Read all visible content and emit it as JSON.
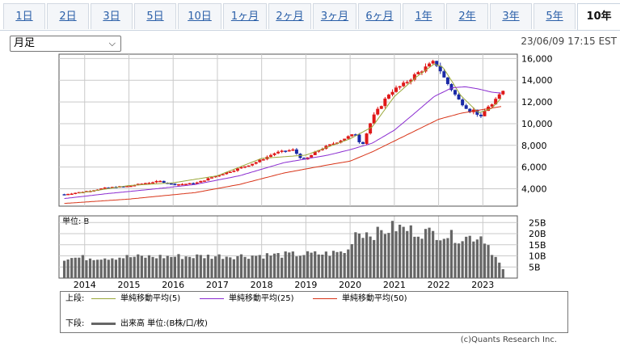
{
  "tabs": [
    {
      "label": "1日",
      "active": false
    },
    {
      "label": "2日",
      "active": false
    },
    {
      "label": "3日",
      "active": false
    },
    {
      "label": "5日",
      "active": false
    },
    {
      "label": "10日",
      "active": false
    },
    {
      "label": "1ヶ月",
      "active": false
    },
    {
      "label": "2ヶ月",
      "active": false
    },
    {
      "label": "3ヶ月",
      "active": false
    },
    {
      "label": "6ヶ月",
      "active": false
    },
    {
      "label": "1年",
      "active": false
    },
    {
      "label": "2年",
      "active": false
    },
    {
      "label": "3年",
      "active": false
    },
    {
      "label": "5年",
      "active": false
    },
    {
      "label": "10年",
      "active": true
    }
  ],
  "period_select": {
    "value": "月足"
  },
  "timestamp": "23/06/09 17:15 EST",
  "volume_unit": "単位: B",
  "legend": {
    "upper_label": "上段:",
    "lower_label": "下段:",
    "ma": [
      {
        "name": "単純移動平均(5)",
        "color": "#9aa83a"
      },
      {
        "name": "単純移動平均(25)",
        "color": "#8a2bd0"
      },
      {
        "name": "単純移動平均(50)",
        "color": "#d83418"
      }
    ],
    "volume": {
      "name": "出来高 単位:(B株/口/枚)",
      "color": "#666666"
    }
  },
  "credit": "(c)Quants Research Inc.",
  "chart_data": [
    {
      "type": "candlestick",
      "x_ticks": [
        "2014",
        "2015",
        "2016",
        "2017",
        "2018",
        "2019",
        "2020",
        "2021",
        "2022",
        "2023"
      ],
      "y_ticks": [
        4000,
        6000,
        8000,
        10000,
        12000,
        14000,
        16000
      ],
      "y_tick_labels": [
        "4,000",
        "6,000",
        "8,000",
        "10,000",
        "12,000",
        "14,000",
        "16,000"
      ],
      "ylim": [
        2400,
        16400
      ],
      "colors": {
        "up": "#e01818",
        "down": "#1a2aa6"
      },
      "close_keypoints": [
        {
          "x": 2013.54,
          "y": 3500
        },
        {
          "x": 2014.0,
          "y": 3750
        },
        {
          "x": 2014.5,
          "y": 4100
        },
        {
          "x": 2015.0,
          "y": 4250
        },
        {
          "x": 2015.4,
          "y": 4550
        },
        {
          "x": 2015.7,
          "y": 4700
        },
        {
          "x": 2016.0,
          "y": 4400
        },
        {
          "x": 2016.5,
          "y": 4500
        },
        {
          "x": 2016.9,
          "y": 5100
        },
        {
          "x": 2017.5,
          "y": 5900
        },
        {
          "x": 2017.9,
          "y": 6500
        },
        {
          "x": 2018.3,
          "y": 7300
        },
        {
          "x": 2018.7,
          "y": 7600
        },
        {
          "x": 2018.95,
          "y": 6600
        },
        {
          "x": 2019.3,
          "y": 7600
        },
        {
          "x": 2019.5,
          "y": 7950
        },
        {
          "x": 2019.9,
          "y": 8700
        },
        {
          "x": 2020.15,
          "y": 9100
        },
        {
          "x": 2020.25,
          "y": 7800
        },
        {
          "x": 2020.5,
          "y": 10500
        },
        {
          "x": 2020.7,
          "y": 11700
        },
        {
          "x": 2020.9,
          "y": 12900
        },
        {
          "x": 2021.2,
          "y": 13600
        },
        {
          "x": 2021.5,
          "y": 14600
        },
        {
          "x": 2021.9,
          "y": 15700
        },
        {
          "x": 2022.0,
          "y": 15200
        },
        {
          "x": 2022.15,
          "y": 14000
        },
        {
          "x": 2022.45,
          "y": 12200
        },
        {
          "x": 2022.75,
          "y": 11000
        },
        {
          "x": 2022.8,
          "y": 11300
        },
        {
          "x": 2022.95,
          "y": 10500
        },
        {
          "x": 2023.1,
          "y": 11600
        },
        {
          "x": 2023.2,
          "y": 11700
        },
        {
          "x": 2023.3,
          "y": 12200
        },
        {
          "x": 2023.45,
          "y": 13100
        }
      ],
      "moving_averages": [
        {
          "name": "単純移動平均(5)",
          "color": "#9aa83a",
          "points": [
            {
              "x": 2013.87,
              "y": 3600
            },
            {
              "x": 2015.0,
              "y": 4300
            },
            {
              "x": 2016.0,
              "y": 4550
            },
            {
              "x": 2017.0,
              "y": 5200
            },
            {
              "x": 2018.0,
              "y": 6800
            },
            {
              "x": 2019.0,
              "y": 7100
            },
            {
              "x": 2020.0,
              "y": 8600
            },
            {
              "x": 2020.5,
              "y": 9700
            },
            {
              "x": 2021.0,
              "y": 12500
            },
            {
              "x": 2021.5,
              "y": 14300
            },
            {
              "x": 2021.9,
              "y": 15500
            },
            {
              "x": 2022.1,
              "y": 15200
            },
            {
              "x": 2022.5,
              "y": 12600
            },
            {
              "x": 2022.9,
              "y": 11000
            },
            {
              "x": 2023.2,
              "y": 11400
            },
            {
              "x": 2023.45,
              "y": 12500
            }
          ]
        },
        {
          "name": "単純移動平均(25)",
          "color": "#8a2bd0",
          "points": [
            {
              "x": 2013.54,
              "y": 3100
            },
            {
              "x": 2014.5,
              "y": 3550
            },
            {
              "x": 2015.5,
              "y": 3950
            },
            {
              "x": 2016.5,
              "y": 4400
            },
            {
              "x": 2017.5,
              "y": 5200
            },
            {
              "x": 2018.5,
              "y": 6400
            },
            {
              "x": 2019.5,
              "y": 7100
            },
            {
              "x": 2020.0,
              "y": 7600
            },
            {
              "x": 2020.5,
              "y": 8200
            },
            {
              "x": 2021.0,
              "y": 9400
            },
            {
              "x": 2021.5,
              "y": 11100
            },
            {
              "x": 2021.9,
              "y": 12500
            },
            {
              "x": 2022.3,
              "y": 13300
            },
            {
              "x": 2022.6,
              "y": 13400
            },
            {
              "x": 2022.9,
              "y": 13200
            },
            {
              "x": 2023.2,
              "y": 12900
            },
            {
              "x": 2023.45,
              "y": 12800
            }
          ]
        },
        {
          "name": "単純移動平均(50)",
          "color": "#d83418",
          "points": [
            {
              "x": 2013.54,
              "y": 2650
            },
            {
              "x": 2015.0,
              "y": 3050
            },
            {
              "x": 2016.5,
              "y": 3650
            },
            {
              "x": 2017.5,
              "y": 4400
            },
            {
              "x": 2018.5,
              "y": 5450
            },
            {
              "x": 2019.5,
              "y": 6200
            },
            {
              "x": 2020.0,
              "y": 6550
            },
            {
              "x": 2020.5,
              "y": 7400
            },
            {
              "x": 2021.0,
              "y": 8400
            },
            {
              "x": 2021.5,
              "y": 9400
            },
            {
              "x": 2022.0,
              "y": 10400
            },
            {
              "x": 2022.5,
              "y": 10950
            },
            {
              "x": 2023.0,
              "y": 11300
            },
            {
              "x": 2023.45,
              "y": 11600
            }
          ]
        }
      ]
    },
    {
      "type": "bar",
      "title": "単位: B",
      "y_ticks": [
        5,
        10,
        15,
        20,
        25
      ],
      "y_tick_labels": [
        "5B",
        "10B",
        "15B",
        "20B",
        "25B"
      ],
      "ylim": [
        0,
        28
      ],
      "x_ticks": [
        "2014",
        "2015",
        "2016",
        "2017",
        "2018",
        "2019",
        "2020",
        "2021",
        "2022",
        "2023"
      ],
      "color": "#666666",
      "volume_keypoints": [
        {
          "x": 2013.54,
          "y": 9
        },
        {
          "x": 2015.0,
          "y": 9.5
        },
        {
          "x": 2016.5,
          "y": 9.8
        },
        {
          "x": 2017.5,
          "y": 10
        },
        {
          "x": 2018.5,
          "y": 10.5
        },
        {
          "x": 2019.5,
          "y": 11
        },
        {
          "x": 2019.95,
          "y": 12
        },
        {
          "x": 2020.1,
          "y": 21
        },
        {
          "x": 2020.6,
          "y": 20
        },
        {
          "x": 2021.0,
          "y": 23
        },
        {
          "x": 2021.5,
          "y": 21
        },
        {
          "x": 2022.0,
          "y": 20
        },
        {
          "x": 2022.5,
          "y": 18
        },
        {
          "x": 2023.0,
          "y": 19
        },
        {
          "x": 2023.45,
          "y": 4
        }
      ]
    }
  ]
}
